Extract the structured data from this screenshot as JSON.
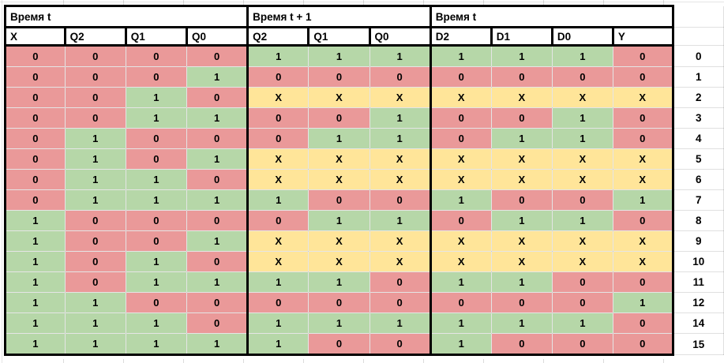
{
  "palette": {
    "red": "#ea9999",
    "green": "#b6d7a8",
    "yellow": "#ffe599",
    "table_border": "#000000",
    "header_bg": "#ffffff"
  },
  "value_colors": {
    "0": "red",
    "1": "green",
    "X": "yellow"
  },
  "header": {
    "groups": [
      {
        "label": "Время t",
        "span": 4
      },
      {
        "label": "Время t + 1",
        "span": 3
      },
      {
        "label": "Время t",
        "span": 4
      }
    ],
    "columns": [
      "X",
      "Q2",
      "Q1",
      "Q0",
      "Q2",
      "Q1",
      "Q0",
      "D2",
      "D1",
      "D0",
      "Y"
    ]
  },
  "rows": [
    {
      "label": "0",
      "cells": [
        "0",
        "0",
        "0",
        "0",
        "1",
        "1",
        "1",
        "1",
        "1",
        "1",
        "0"
      ]
    },
    {
      "label": "1",
      "cells": [
        "0",
        "0",
        "0",
        "1",
        "0",
        "0",
        "0",
        "0",
        "0",
        "0",
        "0"
      ]
    },
    {
      "label": "2",
      "cells": [
        "0",
        "0",
        "1",
        "0",
        "X",
        "X",
        "X",
        "X",
        "X",
        "X",
        "X"
      ]
    },
    {
      "label": "3",
      "cells": [
        "0",
        "0",
        "1",
        "1",
        "0",
        "0",
        "1",
        "0",
        "0",
        "1",
        "0"
      ]
    },
    {
      "label": "4",
      "cells": [
        "0",
        "1",
        "0",
        "0",
        "0",
        "1",
        "1",
        "0",
        "1",
        "1",
        "0"
      ]
    },
    {
      "label": "5",
      "cells": [
        "0",
        "1",
        "0",
        "1",
        "X",
        "X",
        "X",
        "X",
        "X",
        "X",
        "X"
      ]
    },
    {
      "label": "6",
      "cells": [
        "0",
        "1",
        "1",
        "0",
        "X",
        "X",
        "X",
        "X",
        "X",
        "X",
        "X"
      ]
    },
    {
      "label": "7",
      "cells": [
        "0",
        "1",
        "1",
        "1",
        "1",
        "0",
        "0",
        "1",
        "0",
        "0",
        "1"
      ]
    },
    {
      "label": "8",
      "cells": [
        "1",
        "0",
        "0",
        "0",
        "0",
        "1",
        "1",
        "0",
        "1",
        "1",
        "0"
      ]
    },
    {
      "label": "9",
      "cells": [
        "1",
        "0",
        "0",
        "1",
        "X",
        "X",
        "X",
        "X",
        "X",
        "X",
        "X"
      ]
    },
    {
      "label": "10",
      "cells": [
        "1",
        "0",
        "1",
        "0",
        "X",
        "X",
        "X",
        "X",
        "X",
        "X",
        "X"
      ]
    },
    {
      "label": "11",
      "cells": [
        "1",
        "0",
        "1",
        "1",
        "1",
        "1",
        "0",
        "1",
        "1",
        "0",
        "0"
      ]
    },
    {
      "label": "12",
      "cells": [
        "1",
        "1",
        "0",
        "0",
        "0",
        "0",
        "0",
        "0",
        "0",
        "0",
        "1"
      ]
    },
    {
      "label": "14",
      "cells": [
        "1",
        "1",
        "1",
        "0",
        "1",
        "1",
        "1",
        "1",
        "1",
        "1",
        "0"
      ]
    },
    {
      "label": "15",
      "cells": [
        "1",
        "1",
        "1",
        "1",
        "1",
        "0",
        "0",
        "1",
        "0",
        "0",
        "0"
      ]
    }
  ]
}
